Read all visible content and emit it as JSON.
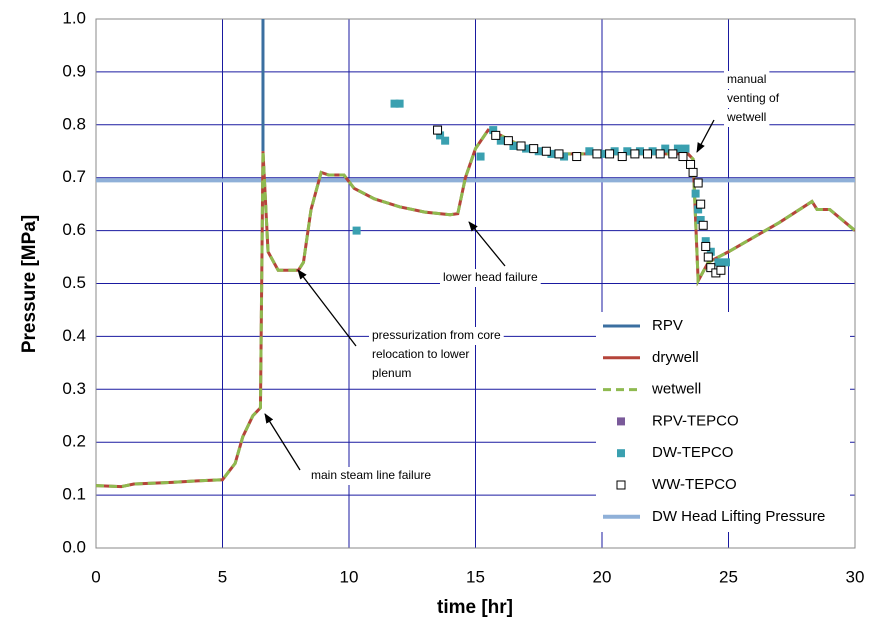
{
  "chart_data": {
    "type": "line",
    "x_label": "time [hr]",
    "y_label": "Pressure [MPa]",
    "xlim": [
      0,
      30
    ],
    "ylim": [
      0,
      1
    ],
    "xticks": [
      0,
      5,
      10,
      15,
      20,
      25,
      30
    ],
    "yticks": [
      {
        "value": 0,
        "label": "0.0"
      },
      0.1,
      0.2,
      0.3,
      0.4,
      0.5,
      0.6,
      0.7,
      0.8,
      0.9,
      {
        "value": 1,
        "label": "1.0"
      }
    ],
    "grid": true,
    "series": [
      {
        "name": "RPV",
        "color": "#3b6fa0",
        "style": "line",
        "x": [
          6.6,
          6.6
        ],
        "values": [
          1.0,
          0.75
        ]
      },
      {
        "name": "drywell",
        "color": "#b5443a",
        "style": "line",
        "x": [
          0,
          1,
          1.5,
          3,
          4,
          5,
          5.5,
          5.8,
          6.2,
          6.5,
          6.6,
          6.8,
          7.2,
          8,
          8.2,
          8.5,
          8.9,
          9.2,
          9.8,
          10.2,
          11,
          12,
          13,
          14,
          14.3,
          14.6,
          15,
          15.5,
          16,
          17,
          18,
          20,
          22,
          23.4,
          23.6,
          23.8,
          24.2,
          25,
          27,
          28.3,
          28.5,
          29,
          30
        ],
        "values": [
          0.118,
          0.116,
          0.121,
          0.124,
          0.127,
          0.129,
          0.16,
          0.21,
          0.25,
          0.265,
          0.75,
          0.56,
          0.525,
          0.525,
          0.54,
          0.64,
          0.71,
          0.705,
          0.705,
          0.68,
          0.66,
          0.645,
          0.635,
          0.63,
          0.632,
          0.7,
          0.755,
          0.79,
          0.78,
          0.755,
          0.745,
          0.745,
          0.745,
          0.745,
          0.735,
          0.505,
          0.54,
          0.56,
          0.615,
          0.655,
          0.64,
          0.64,
          0.6
        ]
      },
      {
        "name": "wetwell",
        "color": "#8fba50",
        "style": "dash",
        "x": [
          0,
          1,
          1.5,
          3,
          4,
          5,
          5.5,
          5.8,
          6.2,
          6.5,
          6.6,
          6.8,
          7.2,
          8,
          8.2,
          8.5,
          8.9,
          9.2,
          9.8,
          10.2,
          11,
          12,
          13,
          14,
          14.3,
          14.6,
          15,
          15.5,
          16,
          17,
          18,
          20,
          22,
          23.4,
          23.6,
          23.8,
          24.2,
          25,
          27,
          28.3,
          28.5,
          29,
          30
        ],
        "values": [
          0.118,
          0.116,
          0.121,
          0.124,
          0.127,
          0.129,
          0.16,
          0.21,
          0.25,
          0.265,
          0.75,
          0.56,
          0.525,
          0.525,
          0.54,
          0.64,
          0.71,
          0.705,
          0.705,
          0.68,
          0.66,
          0.645,
          0.635,
          0.63,
          0.632,
          0.7,
          0.755,
          0.79,
          0.78,
          0.755,
          0.745,
          0.745,
          0.745,
          0.745,
          0.735,
          0.505,
          0.54,
          0.56,
          0.615,
          0.655,
          0.64,
          0.64,
          0.6
        ]
      },
      {
        "name": "RPV-TEPCO",
        "color": "#7a5a9a",
        "style": "square",
        "x": [],
        "values": []
      },
      {
        "name": "DW-TEPCO",
        "color": "#3aa0b0",
        "style": "square",
        "x": [
          10.3,
          11.8,
          12,
          13.6,
          13.8,
          15.2,
          15.7,
          16,
          16.5,
          17,
          17.5,
          18,
          18.5,
          19.5,
          20,
          20.5,
          21,
          21.5,
          22,
          22.5,
          23,
          23.3,
          23.7,
          23.8,
          23.9,
          24.1,
          24.3,
          24.6,
          24.9
        ],
        "values": [
          0.6,
          0.84,
          0.84,
          0.78,
          0.77,
          0.74,
          0.79,
          0.77,
          0.76,
          0.755,
          0.75,
          0.745,
          0.74,
          0.75,
          0.745,
          0.75,
          0.75,
          0.75,
          0.75,
          0.755,
          0.755,
          0.755,
          0.67,
          0.64,
          0.62,
          0.58,
          0.56,
          0.54,
          0.54
        ]
      },
      {
        "name": "WW-TEPCO",
        "color": "#000000",
        "style": "open-square",
        "x": [
          13.5,
          15.8,
          16.3,
          16.8,
          17.3,
          17.8,
          18.3,
          19,
          19.8,
          20.3,
          20.8,
          21.3,
          21.8,
          22.3,
          22.8,
          23.2,
          23.5,
          23.6,
          23.8,
          23.9,
          24,
          24.1,
          24.2,
          24.3,
          24.5,
          24.7
        ],
        "values": [
          0.79,
          0.78,
          0.77,
          0.76,
          0.755,
          0.75,
          0.745,
          0.74,
          0.745,
          0.745,
          0.74,
          0.745,
          0.745,
          0.745,
          0.745,
          0.74,
          0.725,
          0.71,
          0.69,
          0.65,
          0.61,
          0.57,
          0.55,
          0.53,
          0.52,
          0.525
        ]
      },
      {
        "name": "DW Head Lifting Pressure",
        "color": "#8fb0d8",
        "style": "thick",
        "x": [
          0,
          30
        ],
        "values": [
          0.695,
          0.695
        ]
      }
    ],
    "annotations": [
      {
        "lines": [
          "main steam line failure"
        ]
      },
      {
        "lines": [
          "pressurization from core",
          "relocation to lower",
          "plenum"
        ]
      },
      {
        "lines": [
          "lower head failure"
        ]
      },
      {
        "lines": [
          "manual",
          "venting of",
          "wetwell"
        ]
      }
    ]
  }
}
